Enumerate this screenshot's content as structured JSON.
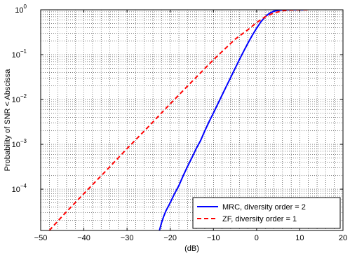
{
  "chart_data": {
    "type": "line",
    "title": "",
    "xlabel": "(dB)",
    "ylabel": "Probability of SNR < Abscissa",
    "xlim": [
      -50,
      20
    ],
    "ylim": [
      1.2e-05,
      1
    ],
    "yscale": "log",
    "grid": "major and minor, dotted",
    "legend_position": "bottom-right",
    "x_ticks": [
      -50,
      -40,
      -30,
      -20,
      -10,
      0,
      10,
      20
    ],
    "x_tick_labels": [
      "−50",
      "−40",
      "−30",
      "−20",
      "−10",
      "0",
      "10",
      "20"
    ],
    "y_ticks": [
      {
        "value": 1,
        "base": "10",
        "exp": "0"
      },
      {
        "value": 0.1,
        "base": "10",
        "exp": "−1"
      },
      {
        "value": 0.01,
        "base": "10",
        "exp": "−2"
      },
      {
        "value": 0.001,
        "base": "10",
        "exp": "−3"
      },
      {
        "value": 0.0001,
        "base": "10",
        "exp": "−4"
      }
    ],
    "series": [
      {
        "name": "MRC, diversity order = 2",
        "color": "#0000ff",
        "style": "solid",
        "x": [
          -22.5,
          -22,
          -21.5,
          -21,
          -20,
          -19,
          -18,
          -17,
          -16,
          -15,
          -14,
          -13,
          -12,
          -11,
          -10,
          -9,
          -8,
          -7,
          -6,
          -5,
          -4,
          -3,
          -2,
          -1,
          0,
          1,
          2,
          3,
          4,
          5,
          6,
          7,
          8,
          9,
          10,
          11
        ],
        "y": [
          1.2e-05,
          1.8e-05,
          2.5e-05,
          3.3e-05,
          5e-05,
          8e-05,
          0.00012,
          0.0002,
          0.00032,
          0.0005,
          0.0008,
          0.0012,
          0.002,
          0.0032,
          0.005,
          0.0079,
          0.0125,
          0.0198,
          0.031,
          0.049,
          0.077,
          0.119,
          0.181,
          0.27,
          0.39,
          0.54,
          0.7,
          0.84,
          0.93,
          0.97,
          0.99,
          1.0,
          1.0,
          1.0,
          1.0,
          1.0
        ]
      },
      {
        "name": "ZF, diversity order = 1",
        "color": "#ff0000",
        "style": "dashed",
        "x": [
          -48,
          -45,
          -40,
          -35,
          -30,
          -25,
          -20,
          -15,
          -10,
          -5,
          -2,
          0,
          2,
          4,
          6,
          8,
          10,
          12
        ],
        "y": [
          1.2e-05,
          2.5e-05,
          8e-05,
          0.00025,
          0.0008,
          0.0025,
          0.008,
          0.025,
          0.077,
          0.22,
          0.36,
          0.52,
          0.7,
          0.85,
          0.95,
          0.99,
          1.0,
          1.0
        ]
      }
    ]
  }
}
